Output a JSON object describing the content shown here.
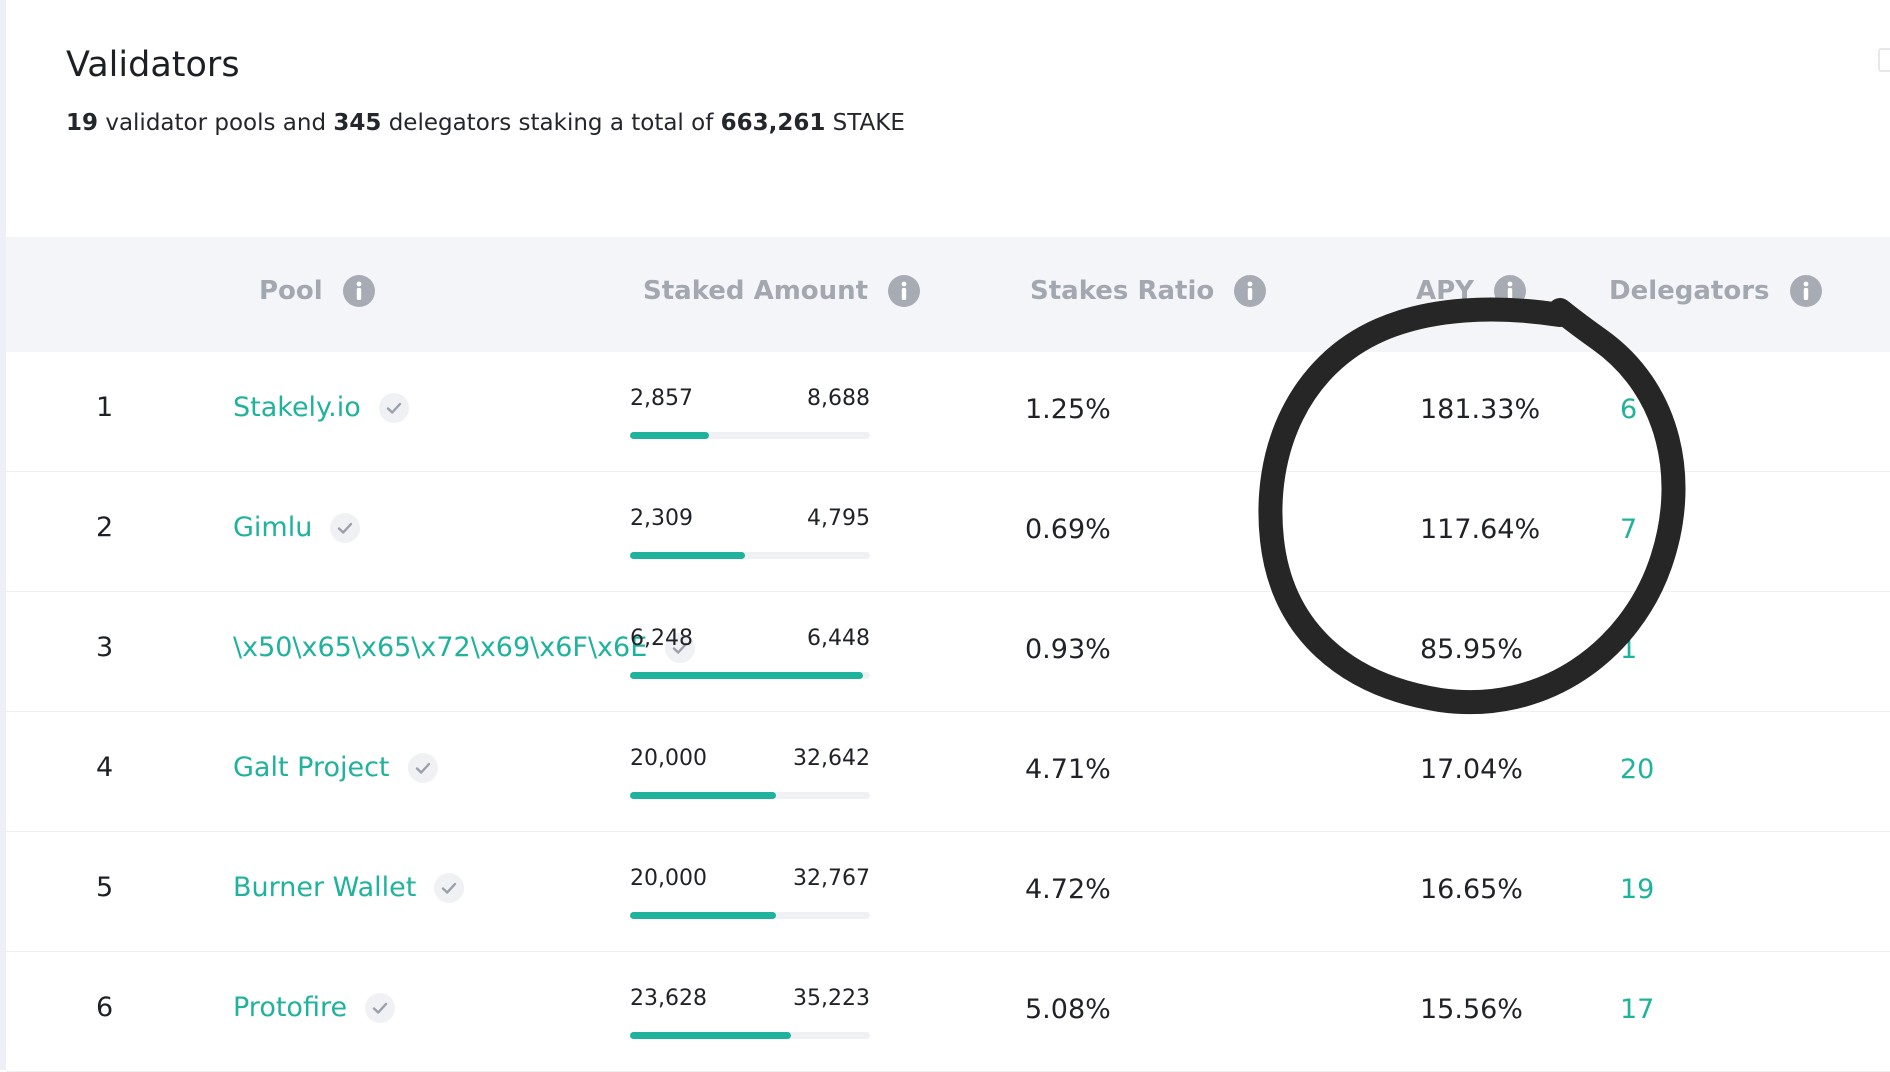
{
  "page": {
    "title": "Validators",
    "summary": {
      "pools": "19",
      "text1": " validator pools and ",
      "delegators": "345",
      "text2": " delegators staking a total of ",
      "total": "663,261",
      "text3": " STAKE"
    }
  },
  "table": {
    "columns": [
      "Pool",
      "Staked Amount",
      "Stakes Ratio",
      "APY",
      "Delegators"
    ],
    "rows": [
      {
        "rank": "1",
        "pool": "Stakely.io",
        "staked": "2,857",
        "capacity": "8,688",
        "fill": 0.33,
        "ratio": "1.25%",
        "apy": "181.33%",
        "delegators": "6"
      },
      {
        "rank": "2",
        "pool": "Gimlu",
        "staked": "2,309",
        "capacity": "4,795",
        "fill": 0.48,
        "ratio": "0.69%",
        "apy": "117.64%",
        "delegators": "7"
      },
      {
        "rank": "3",
        "pool": "\\x50\\x65\\x65\\x72\\x69\\x6F\\x6E",
        "staked": "6,248",
        "capacity": "6,448",
        "fill": 0.97,
        "ratio": "0.93%",
        "apy": "85.95%",
        "delegators": "1"
      },
      {
        "rank": "4",
        "pool": "Galt Project",
        "staked": "20,000",
        "capacity": "32,642",
        "fill": 0.61,
        "ratio": "4.71%",
        "apy": "17.04%",
        "delegators": "20"
      },
      {
        "rank": "5",
        "pool": "Burner Wallet",
        "staked": "20,000",
        "capacity": "32,767",
        "fill": 0.61,
        "ratio": "4.72%",
        "apy": "16.65%",
        "delegators": "19"
      },
      {
        "rank": "6",
        "pool": "Protofire",
        "staked": "23,628",
        "capacity": "35,223",
        "fill": 0.67,
        "ratio": "5.08%",
        "apy": "15.56%",
        "delegators": "17"
      }
    ]
  },
  "colors": {
    "accent": "#1fb29c",
    "header_bg": "#f4f5f8",
    "header_text": "#a3a7b0",
    "annotation": "#262626"
  },
  "icons": {
    "column_info": "info-icon",
    "pool_verified": "check-icon"
  }
}
